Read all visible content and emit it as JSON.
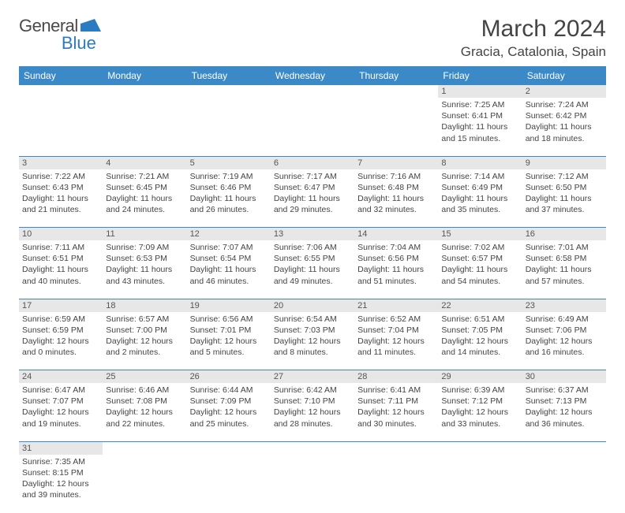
{
  "logo": {
    "text1": "General",
    "text2": "Blue"
  },
  "title": "March 2024",
  "location": "Gracia, Catalonia, Spain",
  "headers": [
    "Sunday",
    "Monday",
    "Tuesday",
    "Wednesday",
    "Thursday",
    "Friday",
    "Saturday"
  ],
  "colors": {
    "header_bg": "#3b89c7",
    "header_text": "#ffffff",
    "daynum_bg": "#e7e7e7",
    "cell_border": "#3b89c7",
    "text": "#444444",
    "logo_gray": "#4a4a4a",
    "logo_blue": "#2a7bbf"
  },
  "typography": {
    "title_fontsize": 30,
    "location_fontsize": 17,
    "header_fontsize": 12,
    "daynum_fontsize": 11,
    "cell_fontsize": 10.5
  },
  "weeks": [
    {
      "nums": [
        "",
        "",
        "",
        "",
        "",
        "1",
        "2"
      ],
      "cells": [
        null,
        null,
        null,
        null,
        null,
        {
          "sunrise": "7:25 AM",
          "sunset": "6:41 PM",
          "daylight": "11 hours and 15 minutes."
        },
        {
          "sunrise": "7:24 AM",
          "sunset": "6:42 PM",
          "daylight": "11 hours and 18 minutes."
        }
      ]
    },
    {
      "nums": [
        "3",
        "4",
        "5",
        "6",
        "7",
        "8",
        "9"
      ],
      "cells": [
        {
          "sunrise": "7:22 AM",
          "sunset": "6:43 PM",
          "daylight": "11 hours and 21 minutes."
        },
        {
          "sunrise": "7:21 AM",
          "sunset": "6:45 PM",
          "daylight": "11 hours and 24 minutes."
        },
        {
          "sunrise": "7:19 AM",
          "sunset": "6:46 PM",
          "daylight": "11 hours and 26 minutes."
        },
        {
          "sunrise": "7:17 AM",
          "sunset": "6:47 PM",
          "daylight": "11 hours and 29 minutes."
        },
        {
          "sunrise": "7:16 AM",
          "sunset": "6:48 PM",
          "daylight": "11 hours and 32 minutes."
        },
        {
          "sunrise": "7:14 AM",
          "sunset": "6:49 PM",
          "daylight": "11 hours and 35 minutes."
        },
        {
          "sunrise": "7:12 AM",
          "sunset": "6:50 PM",
          "daylight": "11 hours and 37 minutes."
        }
      ]
    },
    {
      "nums": [
        "10",
        "11",
        "12",
        "13",
        "14",
        "15",
        "16"
      ],
      "cells": [
        {
          "sunrise": "7:11 AM",
          "sunset": "6:51 PM",
          "daylight": "11 hours and 40 minutes."
        },
        {
          "sunrise": "7:09 AM",
          "sunset": "6:53 PM",
          "daylight": "11 hours and 43 minutes."
        },
        {
          "sunrise": "7:07 AM",
          "sunset": "6:54 PM",
          "daylight": "11 hours and 46 minutes."
        },
        {
          "sunrise": "7:06 AM",
          "sunset": "6:55 PM",
          "daylight": "11 hours and 49 minutes."
        },
        {
          "sunrise": "7:04 AM",
          "sunset": "6:56 PM",
          "daylight": "11 hours and 51 minutes."
        },
        {
          "sunrise": "7:02 AM",
          "sunset": "6:57 PM",
          "daylight": "11 hours and 54 minutes."
        },
        {
          "sunrise": "7:01 AM",
          "sunset": "6:58 PM",
          "daylight": "11 hours and 57 minutes."
        }
      ]
    },
    {
      "nums": [
        "17",
        "18",
        "19",
        "20",
        "21",
        "22",
        "23"
      ],
      "cells": [
        {
          "sunrise": "6:59 AM",
          "sunset": "6:59 PM",
          "daylight": "12 hours and 0 minutes."
        },
        {
          "sunrise": "6:57 AM",
          "sunset": "7:00 PM",
          "daylight": "12 hours and 2 minutes."
        },
        {
          "sunrise": "6:56 AM",
          "sunset": "7:01 PM",
          "daylight": "12 hours and 5 minutes."
        },
        {
          "sunrise": "6:54 AM",
          "sunset": "7:03 PM",
          "daylight": "12 hours and 8 minutes."
        },
        {
          "sunrise": "6:52 AM",
          "sunset": "7:04 PM",
          "daylight": "12 hours and 11 minutes."
        },
        {
          "sunrise": "6:51 AM",
          "sunset": "7:05 PM",
          "daylight": "12 hours and 14 minutes."
        },
        {
          "sunrise": "6:49 AM",
          "sunset": "7:06 PM",
          "daylight": "12 hours and 16 minutes."
        }
      ]
    },
    {
      "nums": [
        "24",
        "25",
        "26",
        "27",
        "28",
        "29",
        "30"
      ],
      "cells": [
        {
          "sunrise": "6:47 AM",
          "sunset": "7:07 PM",
          "daylight": "12 hours and 19 minutes."
        },
        {
          "sunrise": "6:46 AM",
          "sunset": "7:08 PM",
          "daylight": "12 hours and 22 minutes."
        },
        {
          "sunrise": "6:44 AM",
          "sunset": "7:09 PM",
          "daylight": "12 hours and 25 minutes."
        },
        {
          "sunrise": "6:42 AM",
          "sunset": "7:10 PM",
          "daylight": "12 hours and 28 minutes."
        },
        {
          "sunrise": "6:41 AM",
          "sunset": "7:11 PM",
          "daylight": "12 hours and 30 minutes."
        },
        {
          "sunrise": "6:39 AM",
          "sunset": "7:12 PM",
          "daylight": "12 hours and 33 minutes."
        },
        {
          "sunrise": "6:37 AM",
          "sunset": "7:13 PM",
          "daylight": "12 hours and 36 minutes."
        }
      ]
    },
    {
      "nums": [
        "31",
        "",
        "",
        "",
        "",
        "",
        ""
      ],
      "cells": [
        {
          "sunrise": "7:35 AM",
          "sunset": "8:15 PM",
          "daylight": "12 hours and 39 minutes."
        },
        null,
        null,
        null,
        null,
        null,
        null
      ]
    }
  ],
  "labels": {
    "sunrise": "Sunrise:",
    "sunset": "Sunset:",
    "daylight": "Daylight:"
  }
}
